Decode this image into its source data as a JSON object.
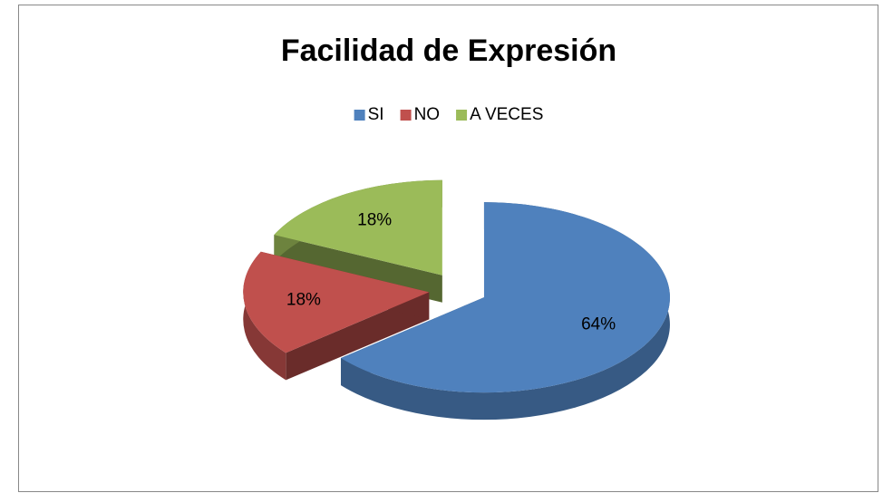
{
  "chart_data": {
    "type": "pie",
    "title": "Facilidad de Expresión",
    "categories": [
      "SI",
      "NO",
      "A VECES"
    ],
    "values": [
      64,
      18,
      18
    ],
    "value_labels": [
      "64%",
      "18%",
      "18%"
    ],
    "colors": [
      "#4f81bd",
      "#c0504d",
      "#9bbb59"
    ],
    "legend": "top"
  }
}
